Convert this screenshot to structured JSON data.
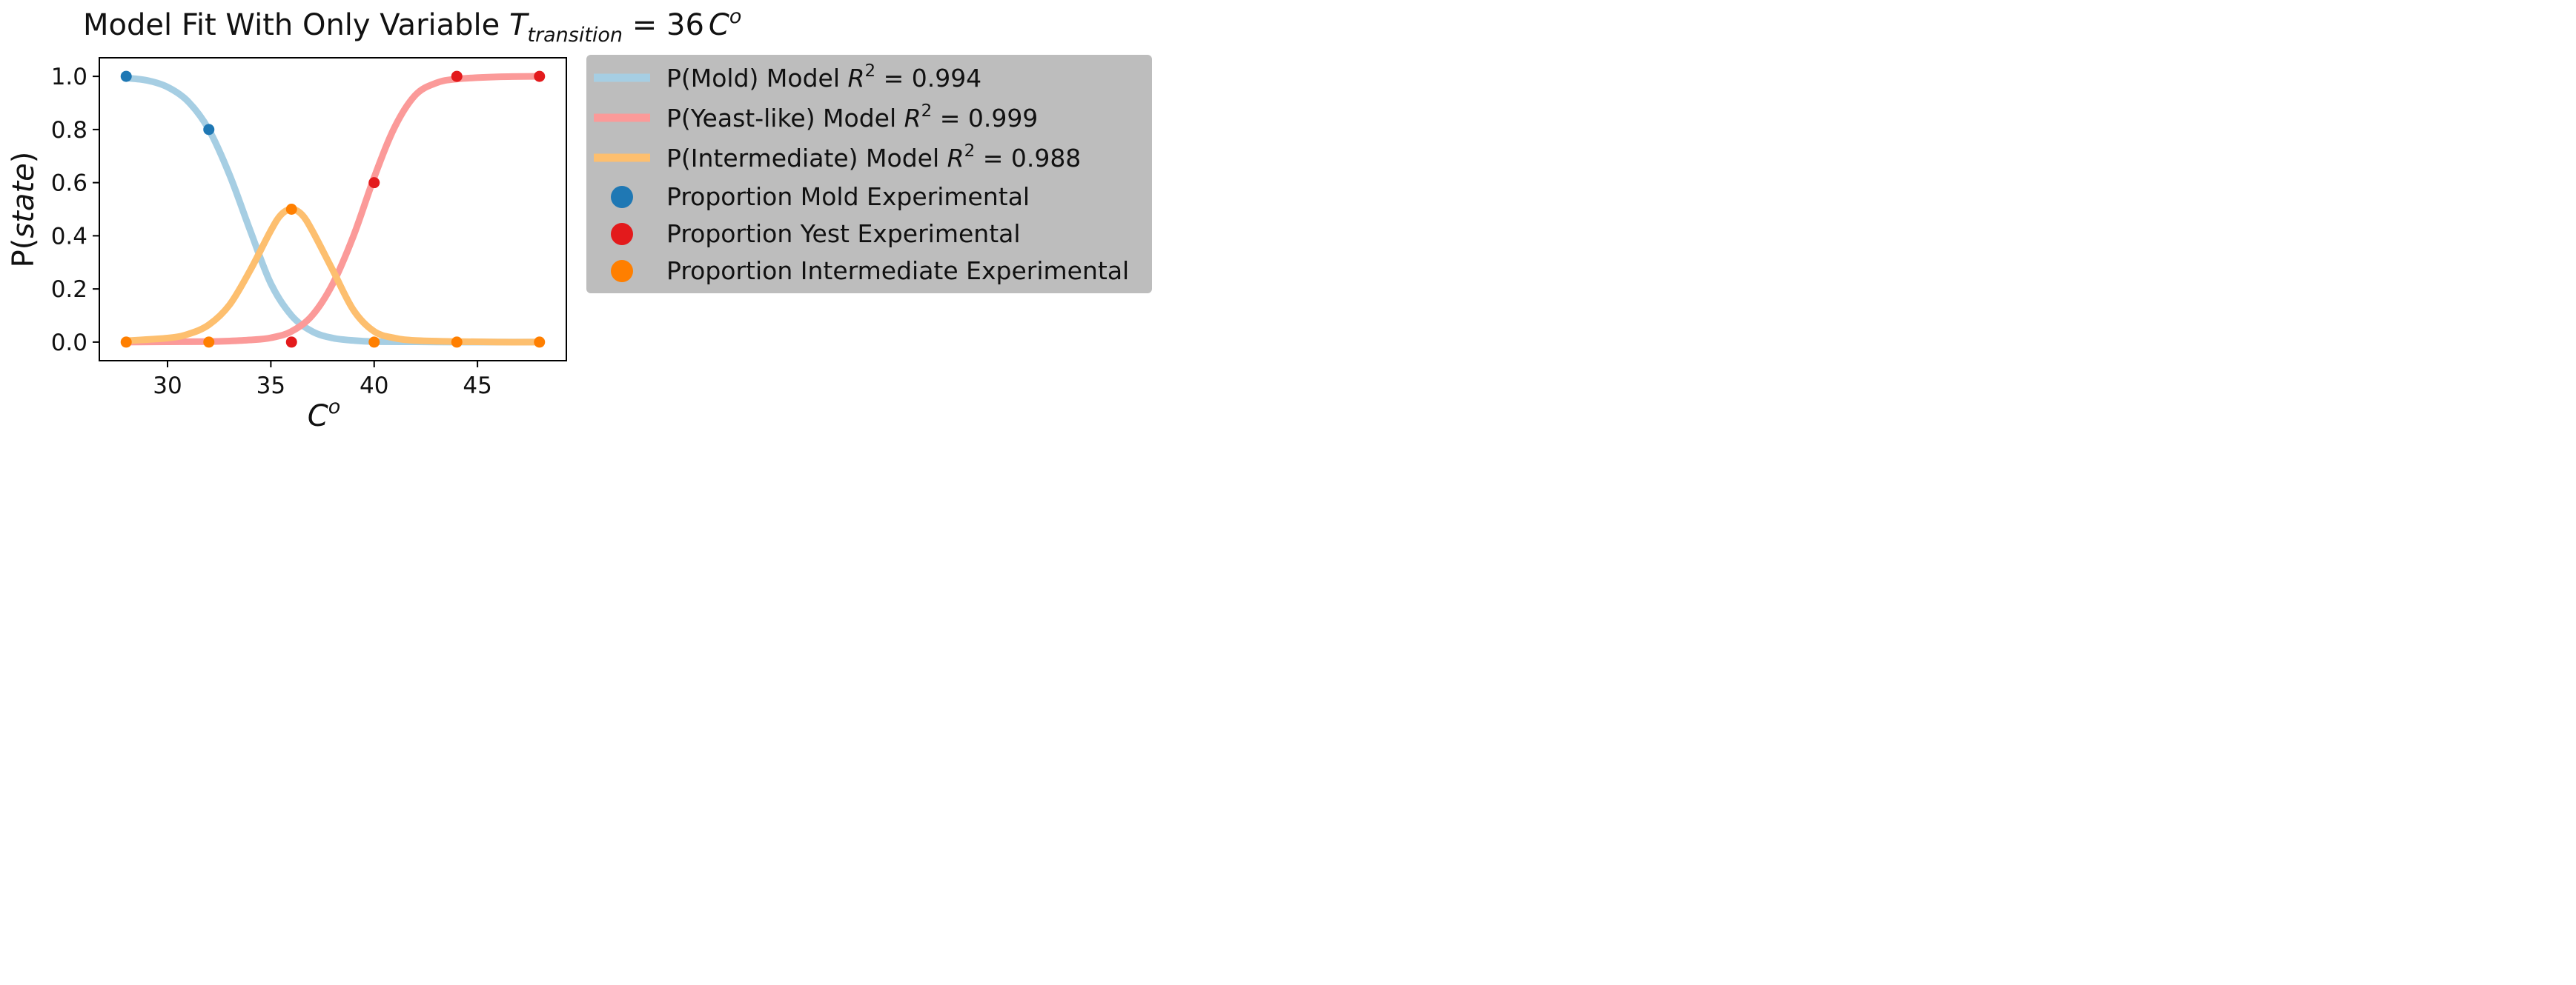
{
  "chart_data": {
    "type": "line",
    "title_main": "Model Fit With Only Variable ",
    "title_var": "T",
    "title_sub": "transition",
    "title_eq": " = 36",
    "title_unit": "C",
    "title_unit_sup": "o",
    "xlabel": "C",
    "xlabel_sup": "o",
    "ylabel_prefix": "P(",
    "ylabel_italic": "state",
    "ylabel_suffix": ")",
    "xlim": [
      26.7,
      49.3
    ],
    "ylim": [
      -0.07,
      1.07
    ],
    "xticks": [
      30,
      35,
      40,
      45
    ],
    "xtick_labels": [
      "30",
      "35",
      "40",
      "45"
    ],
    "yticks": [
      0.0,
      0.2,
      0.4,
      0.6,
      0.8,
      1.0
    ],
    "ytick_labels": [
      "0.0",
      "0.2",
      "0.4",
      "0.6",
      "0.8",
      "1.0"
    ],
    "grid": false,
    "legend_position": "outside-right",
    "model_series": [
      {
        "name": "P(Mold) Model ",
        "r2_label": "R",
        "r2_sup": "2",
        "r2_value": " = 0.994",
        "color": "#a6cee3",
        "x": [
          28,
          29,
          30,
          31,
          32,
          33,
          34,
          35,
          36,
          37,
          38,
          39,
          40,
          42,
          44,
          46,
          48
        ],
        "y": [
          0.994,
          0.985,
          0.96,
          0.905,
          0.8,
          0.63,
          0.42,
          0.22,
          0.1,
          0.04,
          0.015,
          0.006,
          0.002,
          0.001,
          0.0,
          0.0,
          0.0
        ]
      },
      {
        "name": "P(Yeast-like) Model ",
        "r2_label": "R",
        "r2_sup": "2",
        "r2_value": " = 0.999",
        "color": "#fb9a99",
        "x": [
          28,
          30,
          32,
          33,
          34,
          35,
          36,
          37,
          38,
          39,
          40,
          41,
          42,
          43,
          44,
          46,
          48
        ],
        "y": [
          0.0,
          0.001,
          0.002,
          0.004,
          0.008,
          0.016,
          0.04,
          0.1,
          0.22,
          0.4,
          0.62,
          0.81,
          0.93,
          0.975,
          0.99,
          0.998,
          1.0
        ]
      },
      {
        "name": "P(Intermediate) Model ",
        "r2_label": "R",
        "r2_sup": "2",
        "r2_value": " = 0.988",
        "color": "#fdbf6f",
        "x": [
          28,
          30,
          31,
          32,
          33,
          34,
          35,
          35.5,
          36,
          36.5,
          37,
          38,
          39,
          40,
          41,
          42,
          44,
          46,
          48
        ],
        "y": [
          0.005,
          0.015,
          0.03,
          0.065,
          0.14,
          0.27,
          0.42,
          0.48,
          0.5,
          0.48,
          0.42,
          0.27,
          0.12,
          0.04,
          0.015,
          0.006,
          0.002,
          0.0,
          0.0
        ]
      }
    ],
    "experimental_series": [
      {
        "name": "Proportion Mold Experimental",
        "color": "#1f78b4",
        "x": [
          28,
          32
        ],
        "y": [
          1.0,
          0.8
        ]
      },
      {
        "name": "Proportion Yest Experimental",
        "color": "#e31a1c",
        "x": [
          36,
          40,
          44,
          48
        ],
        "y": [
          0.0,
          0.6,
          1.0,
          1.0
        ]
      },
      {
        "name": "Proportion Intermediate Experimental",
        "color": "#ff7f00",
        "x": [
          28,
          32,
          36,
          40,
          44,
          48
        ],
        "y": [
          0.0,
          0.0,
          0.5,
          0.0,
          0.0,
          0.0
        ]
      }
    ],
    "colors": {
      "legend_background": "#bdbdbd"
    }
  }
}
